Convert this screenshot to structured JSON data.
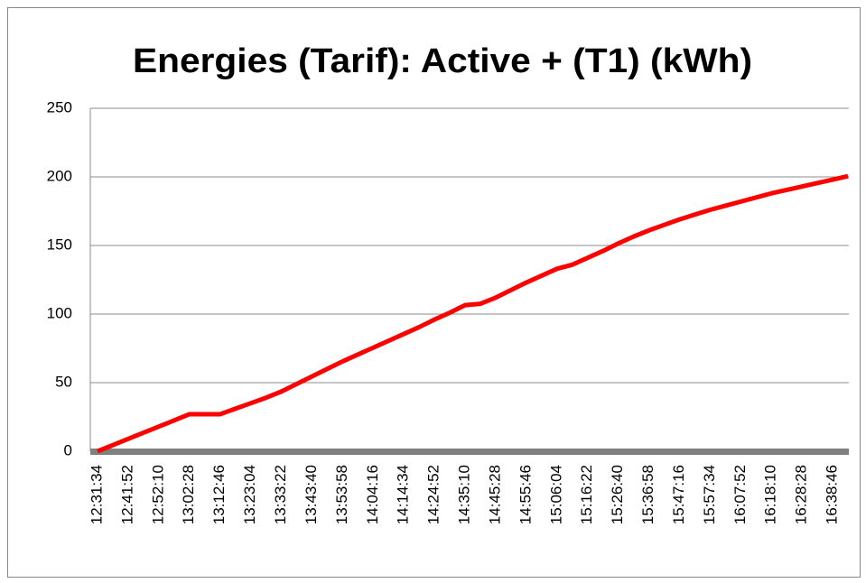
{
  "chart_data": {
    "type": "line",
    "title": "Energies (Tarif): Active + (T1) (kWh)",
    "categories": [
      "12:31:34",
      null,
      "12:41:52",
      null,
      "12:52:10",
      null,
      "13:02:28",
      null,
      "13:12:46",
      null,
      "13:23:04",
      null,
      "13:33:22",
      null,
      "13:43:40",
      null,
      "13:53:58",
      null,
      "14:04:16",
      null,
      "14:14:34",
      null,
      "14:24:52",
      null,
      "14:35:10",
      null,
      "14:45:28",
      null,
      "14:55:46",
      null,
      "15:06:04",
      null,
      "15:16:22",
      null,
      "15:26:40",
      null,
      "15:36:58",
      null,
      "15:47:16",
      null,
      "15:57:34",
      null,
      "16:07:52",
      null,
      "16:18:10",
      null,
      "16:28:28",
      null,
      "16:38:46",
      null
    ],
    "values": [
      0,
      4.5,
      9,
      13.5,
      18,
      22.5,
      27,
      27,
      27,
      31,
      35,
      39,
      43.5,
      49,
      54.5,
      60,
      65.5,
      70.5,
      75.5,
      80.5,
      85.5,
      90.5,
      96,
      101,
      106.5,
      107.5,
      112,
      117.5,
      123,
      128,
      133,
      136,
      141,
      146,
      151.5,
      156.5,
      161,
      165,
      169,
      172.5,
      176,
      179,
      182,
      185,
      188,
      190.5,
      193,
      195.5,
      198,
      200.5
    ],
    "color": "#ff0000",
    "ylim": [
      0,
      250
    ],
    "yticks": [
      0,
      50,
      100,
      150,
      200,
      250
    ],
    "grid": true
  }
}
